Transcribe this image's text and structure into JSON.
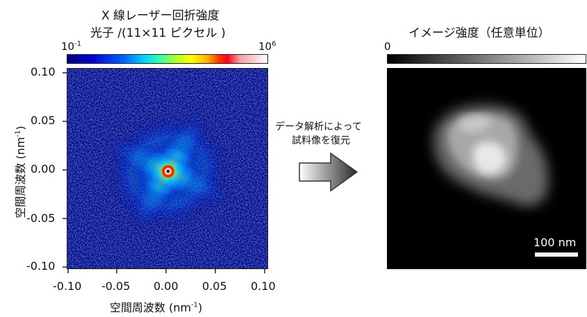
{
  "left_panel": {
    "title_line1": "X 線レーザー回折強度",
    "title_line2": "光子 /(11×11 ピクセル )",
    "colorbar_min": "10",
    "colorbar_min_exp": "-1",
    "colorbar_max": "10",
    "colorbar_max_exp": "6",
    "y_ticks": [
      "0.10",
      "0.05",
      "0.00",
      "-0.05",
      "-0.10"
    ],
    "x_ticks": [
      "-0.10",
      "-0.05",
      "0.00",
      "0.05",
      "0.10"
    ],
    "y_axis_label_main": "空間周波数 (nm",
    "y_axis_label_exp": "-1",
    "y_axis_label_end": ")",
    "x_axis_label_main": "空間周波数 (nm",
    "x_axis_label_exp": "-1",
    "x_axis_label_end": ")"
  },
  "arrow_caption": {
    "line1": "データ解析によって",
    "line2": "試料像を復元"
  },
  "right_panel": {
    "title": "イメージ強度（任意単位）",
    "colorbar_min": "0",
    "scale_bar_label": "100 nm"
  }
}
